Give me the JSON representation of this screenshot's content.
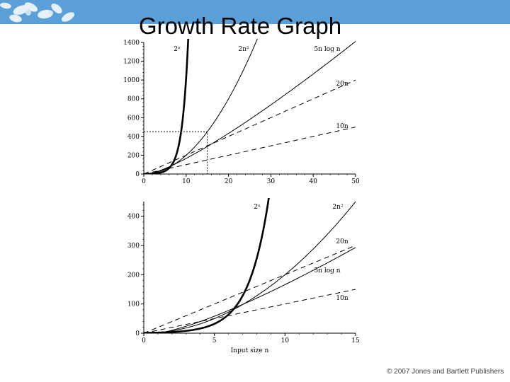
{
  "slide": {
    "title": "Growth Rate Graph",
    "copyright": "© 2007 Jones and Bartlett Publishers",
    "banner_color": "#5a9fd8"
  },
  "chart_data": [
    {
      "type": "line",
      "title": "",
      "xlabel": "",
      "ylabel": "",
      "xlim": [
        0,
        50
      ],
      "ylim": [
        0,
        1400
      ],
      "xticks": [
        0,
        10,
        20,
        30,
        40,
        50
      ],
      "yticks": [
        0,
        200,
        400,
        600,
        800,
        1000,
        1200,
        1400
      ],
      "grid": false,
      "series": [
        {
          "name": "2ⁿ",
          "formula": "pow2",
          "style": "bold",
          "values": [
            [
              0,
              1
            ],
            [
              2,
              4
            ],
            [
              4,
              16
            ],
            [
              6,
              64
            ],
            [
              8,
              256
            ],
            [
              9,
              512
            ],
            [
              10,
              1024
            ],
            [
              10.45,
              1400
            ]
          ]
        },
        {
          "name": "2n²",
          "formula": "2n2",
          "style": "solid",
          "values": [
            [
              0,
              0
            ],
            [
              5,
              50
            ],
            [
              10,
              200
            ],
            [
              15,
              450
            ],
            [
              20,
              800
            ],
            [
              25,
              1250
            ],
            [
              26.5,
              1400
            ]
          ]
        },
        {
          "name": "5n log n",
          "formula": "5nlogn",
          "style": "solid",
          "values": [
            [
              1,
              0
            ],
            [
              10,
              166
            ],
            [
              20,
              432
            ],
            [
              30,
              736
            ],
            [
              40,
              1064
            ],
            [
              50,
              1411
            ]
          ]
        },
        {
          "name": "20n",
          "formula": "20n",
          "style": "dashed",
          "values": [
            [
              0,
              0
            ],
            [
              10,
              200
            ],
            [
              20,
              400
            ],
            [
              30,
              600
            ],
            [
              40,
              800
            ],
            [
              50,
              1000
            ]
          ]
        },
        {
          "name": "10n",
          "formula": "10n",
          "style": "dashed",
          "values": [
            [
              0,
              0
            ],
            [
              10,
              100
            ],
            [
              20,
              200
            ],
            [
              30,
              300
            ],
            [
              40,
              400
            ],
            [
              50,
              500
            ]
          ]
        }
      ],
      "annotations": [
        {
          "type": "dotted-box",
          "x": [
            0,
            15
          ],
          "y": [
            0,
            450
          ]
        }
      ]
    },
    {
      "type": "line",
      "title": "",
      "xlabel": "Input size  n",
      "ylabel": "",
      "xlim": [
        0,
        15
      ],
      "ylim": [
        0,
        450
      ],
      "xticks": [
        0,
        5,
        10,
        15
      ],
      "yticks": [
        0,
        100,
        200,
        300,
        400
      ],
      "grid": false,
      "series": [
        {
          "name": "2ⁿ",
          "formula": "pow2",
          "style": "bold",
          "values": [
            [
              0,
              1
            ],
            [
              2,
              4
            ],
            [
              4,
              16
            ],
            [
              6,
              64
            ],
            [
              7,
              128
            ],
            [
              8,
              256
            ],
            [
              8.8,
              446
            ]
          ]
        },
        {
          "name": "2n²",
          "formula": "2n2",
          "style": "solid",
          "values": [
            [
              0,
              0
            ],
            [
              5,
              50
            ],
            [
              10,
              200
            ],
            [
              12,
              288
            ],
            [
              15,
              450
            ]
          ]
        },
        {
          "name": "20n",
          "formula": "20n",
          "style": "dashed",
          "values": [
            [
              0,
              0
            ],
            [
              5,
              100
            ],
            [
              10,
              200
            ],
            [
              15,
              300
            ]
          ]
        },
        {
          "name": "5n log n",
          "formula": "5nlogn",
          "style": "solid",
          "values": [
            [
              1,
              0
            ],
            [
              5,
              58
            ],
            [
              10,
              166
            ],
            [
              15,
              293
            ]
          ]
        },
        {
          "name": "10n",
          "formula": "10n",
          "style": "dashed",
          "values": [
            [
              0,
              0
            ],
            [
              5,
              50
            ],
            [
              10,
              100
            ],
            [
              15,
              150
            ]
          ]
        }
      ]
    }
  ]
}
